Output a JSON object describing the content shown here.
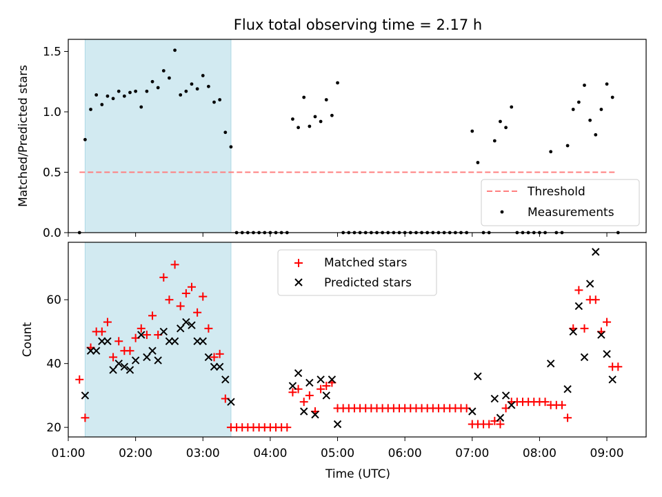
{
  "chart_data": [
    {
      "type": "scatter",
      "title": "Flux total observing time = 2.17 h",
      "ylabel": "Matched/Predicted stars",
      "xlabel": "",
      "xlim": [
        "01:00",
        "09:35"
      ],
      "ylim": [
        0,
        1.6
      ],
      "yticks": [
        0.0,
        0.5,
        1.0,
        1.5
      ],
      "ytick_labels": [
        "0.0",
        "0.5",
        "1.0",
        "1.5"
      ],
      "threshold": 0.5,
      "threshold_color": "#ff7f7f",
      "shaded_interval": [
        "01:15",
        "03:25"
      ],
      "shade_color": "#add8e6",
      "legend": {
        "position": "lower-right",
        "entries": [
          "Threshold",
          "Measurements"
        ]
      },
      "series": [
        {
          "name": "Measurements",
          "color": "#000000",
          "points": [
            [
              "01:10",
              0.0
            ],
            [
              "01:15",
              0.77
            ],
            [
              "01:20",
              1.02
            ],
            [
              "01:25",
              1.14
            ],
            [
              "01:30",
              1.06
            ],
            [
              "01:35",
              1.13
            ],
            [
              "01:40",
              1.11
            ],
            [
              "01:45",
              1.17
            ],
            [
              "01:50",
              1.13
            ],
            [
              "01:55",
              1.16
            ],
            [
              "02:00",
              1.17
            ],
            [
              "02:05",
              1.04
            ],
            [
              "02:10",
              1.17
            ],
            [
              "02:15",
              1.25
            ],
            [
              "02:20",
              1.2
            ],
            [
              "02:25",
              1.34
            ],
            [
              "02:30",
              1.28
            ],
            [
              "02:35",
              1.51
            ],
            [
              "02:40",
              1.14
            ],
            [
              "02:45",
              1.17
            ],
            [
              "02:50",
              1.23
            ],
            [
              "02:55",
              1.19
            ],
            [
              "03:00",
              1.3
            ],
            [
              "03:05",
              1.21
            ],
            [
              "03:10",
              1.08
            ],
            [
              "03:15",
              1.1
            ],
            [
              "03:20",
              0.83
            ],
            [
              "03:25",
              0.71
            ],
            [
              "03:30",
              0.0
            ],
            [
              "03:35",
              0.0
            ],
            [
              "03:40",
              0.0
            ],
            [
              "03:45",
              0.0
            ],
            [
              "03:50",
              0.0
            ],
            [
              "03:55",
              0.0
            ],
            [
              "04:00",
              0.0
            ],
            [
              "04:05",
              0.0
            ],
            [
              "04:10",
              0.0
            ],
            [
              "04:15",
              0.0
            ],
            [
              "04:20",
              0.94
            ],
            [
              "04:25",
              0.87
            ],
            [
              "04:30",
              1.12
            ],
            [
              "04:35",
              0.88
            ],
            [
              "04:40",
              0.96
            ],
            [
              "04:45",
              0.92
            ],
            [
              "04:50",
              1.1
            ],
            [
              "04:55",
              0.97
            ],
            [
              "05:00",
              1.24
            ],
            [
              "05:05",
              0.0
            ],
            [
              "05:10",
              0.0
            ],
            [
              "05:15",
              0.0
            ],
            [
              "05:20",
              0.0
            ],
            [
              "05:25",
              0.0
            ],
            [
              "05:30",
              0.0
            ],
            [
              "05:35",
              0.0
            ],
            [
              "05:40",
              0.0
            ],
            [
              "05:45",
              0.0
            ],
            [
              "05:50",
              0.0
            ],
            [
              "05:55",
              0.0
            ],
            [
              "06:00",
              0.0
            ],
            [
              "06:05",
              0.0
            ],
            [
              "06:10",
              0.0
            ],
            [
              "06:15",
              0.0
            ],
            [
              "06:20",
              0.0
            ],
            [
              "06:25",
              0.0
            ],
            [
              "06:30",
              0.0
            ],
            [
              "06:35",
              0.0
            ],
            [
              "06:40",
              0.0
            ],
            [
              "06:45",
              0.0
            ],
            [
              "06:50",
              0.0
            ],
            [
              "06:55",
              0.0
            ],
            [
              "07:00",
              0.84
            ],
            [
              "07:05",
              0.58
            ],
            [
              "07:10",
              0.0
            ],
            [
              "07:15",
              0.0
            ],
            [
              "07:20",
              0.76
            ],
            [
              "07:25",
              0.92
            ],
            [
              "07:30",
              0.87
            ],
            [
              "07:35",
              1.04
            ],
            [
              "07:40",
              0.0
            ],
            [
              "07:45",
              0.0
            ],
            [
              "07:50",
              0.0
            ],
            [
              "07:55",
              0.0
            ],
            [
              "08:00",
              0.0
            ],
            [
              "08:05",
              0.0
            ],
            [
              "08:10",
              0.67
            ],
            [
              "08:15",
              0.0
            ],
            [
              "08:20",
              0.0
            ],
            [
              "08:25",
              0.72
            ],
            [
              "08:30",
              1.02
            ],
            [
              "08:35",
              1.08
            ],
            [
              "08:40",
              1.22
            ],
            [
              "08:45",
              0.93
            ],
            [
              "08:50",
              0.81
            ],
            [
              "08:55",
              1.02
            ],
            [
              "09:00",
              1.23
            ],
            [
              "09:05",
              1.12
            ],
            [
              "09:10",
              0.0
            ]
          ]
        }
      ]
    },
    {
      "type": "scatter",
      "title": "",
      "xlabel": "Time (UTC)",
      "ylabel": "Count",
      "xlim": [
        "01:00",
        "09:35"
      ],
      "ylim": [
        17,
        78
      ],
      "xtick_labels": [
        "01:00",
        "02:00",
        "03:00",
        "04:00",
        "05:00",
        "06:00",
        "07:00",
        "08:00",
        "09:00"
      ],
      "yticks": [
        20,
        40,
        60
      ],
      "ytick_labels": [
        "20",
        "40",
        "60"
      ],
      "shaded_interval": [
        "01:15",
        "03:25"
      ],
      "legend": {
        "position": "top-center",
        "entries": [
          "Matched stars",
          "Predicted stars"
        ]
      },
      "series": [
        {
          "name": "Matched stars",
          "marker": "plus",
          "color": "#ff0000",
          "points": [
            [
              "01:10",
              35
            ],
            [
              "01:15",
              23
            ],
            [
              "01:20",
              45
            ],
            [
              "01:25",
              50
            ],
            [
              "01:30",
              50
            ],
            [
              "01:35",
              53
            ],
            [
              "01:40",
              42
            ],
            [
              "01:45",
              47
            ],
            [
              "01:50",
              44
            ],
            [
              "01:55",
              44
            ],
            [
              "02:00",
              48
            ],
            [
              "02:05",
              51
            ],
            [
              "02:10",
              49
            ],
            [
              "02:15",
              55
            ],
            [
              "02:20",
              49
            ],
            [
              "02:25",
              67
            ],
            [
              "02:30",
              60
            ],
            [
              "02:35",
              71
            ],
            [
              "02:40",
              58
            ],
            [
              "02:45",
              62
            ],
            [
              "02:50",
              64
            ],
            [
              "02:55",
              56
            ],
            [
              "03:00",
              61
            ],
            [
              "03:05",
              51
            ],
            [
              "03:10",
              42
            ],
            [
              "03:15",
              43
            ],
            [
              "03:20",
              29
            ],
            [
              "03:25",
              20
            ],
            [
              "03:30",
              20
            ],
            [
              "03:35",
              20
            ],
            [
              "03:40",
              20
            ],
            [
              "03:45",
              20
            ],
            [
              "03:50",
              20
            ],
            [
              "03:55",
              20
            ],
            [
              "04:00",
              20
            ],
            [
              "04:05",
              20
            ],
            [
              "04:10",
              20
            ],
            [
              "04:15",
              20
            ],
            [
              "04:20",
              31
            ],
            [
              "04:25",
              32
            ],
            [
              "04:30",
              28
            ],
            [
              "04:35",
              30
            ],
            [
              "04:40",
              25
            ],
            [
              "04:45",
              32
            ],
            [
              "04:50",
              33
            ],
            [
              "04:55",
              34
            ],
            [
              "05:00",
              26
            ],
            [
              "05:05",
              26
            ],
            [
              "05:10",
              26
            ],
            [
              "05:15",
              26
            ],
            [
              "05:20",
              26
            ],
            [
              "05:25",
              26
            ],
            [
              "05:30",
              26
            ],
            [
              "05:35",
              26
            ],
            [
              "05:40",
              26
            ],
            [
              "05:45",
              26
            ],
            [
              "05:50",
              26
            ],
            [
              "05:55",
              26
            ],
            [
              "06:00",
              26
            ],
            [
              "06:05",
              26
            ],
            [
              "06:10",
              26
            ],
            [
              "06:15",
              26
            ],
            [
              "06:20",
              26
            ],
            [
              "06:25",
              26
            ],
            [
              "06:30",
              26
            ],
            [
              "06:35",
              26
            ],
            [
              "06:40",
              26
            ],
            [
              "06:45",
              26
            ],
            [
              "06:50",
              26
            ],
            [
              "06:55",
              26
            ],
            [
              "07:00",
              21
            ],
            [
              "07:05",
              21
            ],
            [
              "07:10",
              21
            ],
            [
              "07:15",
              21
            ],
            [
              "07:20",
              22
            ],
            [
              "07:25",
              21
            ],
            [
              "07:30",
              26
            ],
            [
              "07:35",
              28
            ],
            [
              "07:40",
              28
            ],
            [
              "07:45",
              28
            ],
            [
              "07:50",
              28
            ],
            [
              "07:55",
              28
            ],
            [
              "08:00",
              28
            ],
            [
              "08:05",
              28
            ],
            [
              "08:10",
              27
            ],
            [
              "08:15",
              27
            ],
            [
              "08:20",
              27
            ],
            [
              "08:25",
              23
            ],
            [
              "08:30",
              51
            ],
            [
              "08:35",
              63
            ],
            [
              "08:40",
              51
            ],
            [
              "08:45",
              60
            ],
            [
              "08:50",
              60
            ],
            [
              "08:55",
              50
            ],
            [
              "09:00",
              53
            ],
            [
              "09:05",
              39
            ],
            [
              "09:10",
              39
            ]
          ]
        },
        {
          "name": "Predicted stars",
          "marker": "x",
          "color": "#000000",
          "points": [
            [
              "01:15",
              30
            ],
            [
              "01:20",
              44
            ],
            [
              "01:25",
              44
            ],
            [
              "01:30",
              47
            ],
            [
              "01:35",
              47
            ],
            [
              "01:40",
              38
            ],
            [
              "01:45",
              40
            ],
            [
              "01:50",
              39
            ],
            [
              "01:55",
              38
            ],
            [
              "02:00",
              41
            ],
            [
              "02:05",
              49
            ],
            [
              "02:10",
              42
            ],
            [
              "02:15",
              44
            ],
            [
              "02:20",
              41
            ],
            [
              "02:25",
              50
            ],
            [
              "02:30",
              47
            ],
            [
              "02:35",
              47
            ],
            [
              "02:40",
              51
            ],
            [
              "02:45",
              53
            ],
            [
              "02:50",
              52
            ],
            [
              "02:55",
              47
            ],
            [
              "03:00",
              47
            ],
            [
              "03:05",
              42
            ],
            [
              "03:10",
              39
            ],
            [
              "03:15",
              39
            ],
            [
              "03:20",
              35
            ],
            [
              "03:25",
              28
            ],
            [
              "04:20",
              33
            ],
            [
              "04:25",
              37
            ],
            [
              "04:30",
              25
            ],
            [
              "04:35",
              34
            ],
            [
              "04:40",
              24
            ],
            [
              "04:45",
              35
            ],
            [
              "04:50",
              30
            ],
            [
              "04:55",
              35
            ],
            [
              "05:00",
              21
            ],
            [
              "07:00",
              25
            ],
            [
              "07:05",
              36
            ],
            [
              "07:20",
              29
            ],
            [
              "07:25",
              23
            ],
            [
              "07:30",
              30
            ],
            [
              "07:35",
              27
            ],
            [
              "08:10",
              40
            ],
            [
              "08:25",
              32
            ],
            [
              "08:30",
              50
            ],
            [
              "08:35",
              58
            ],
            [
              "08:40",
              42
            ],
            [
              "08:45",
              65
            ],
            [
              "08:50",
              75
            ],
            [
              "08:55",
              49
            ],
            [
              "09:00",
              43
            ],
            [
              "09:05",
              35
            ]
          ]
        }
      ]
    }
  ]
}
